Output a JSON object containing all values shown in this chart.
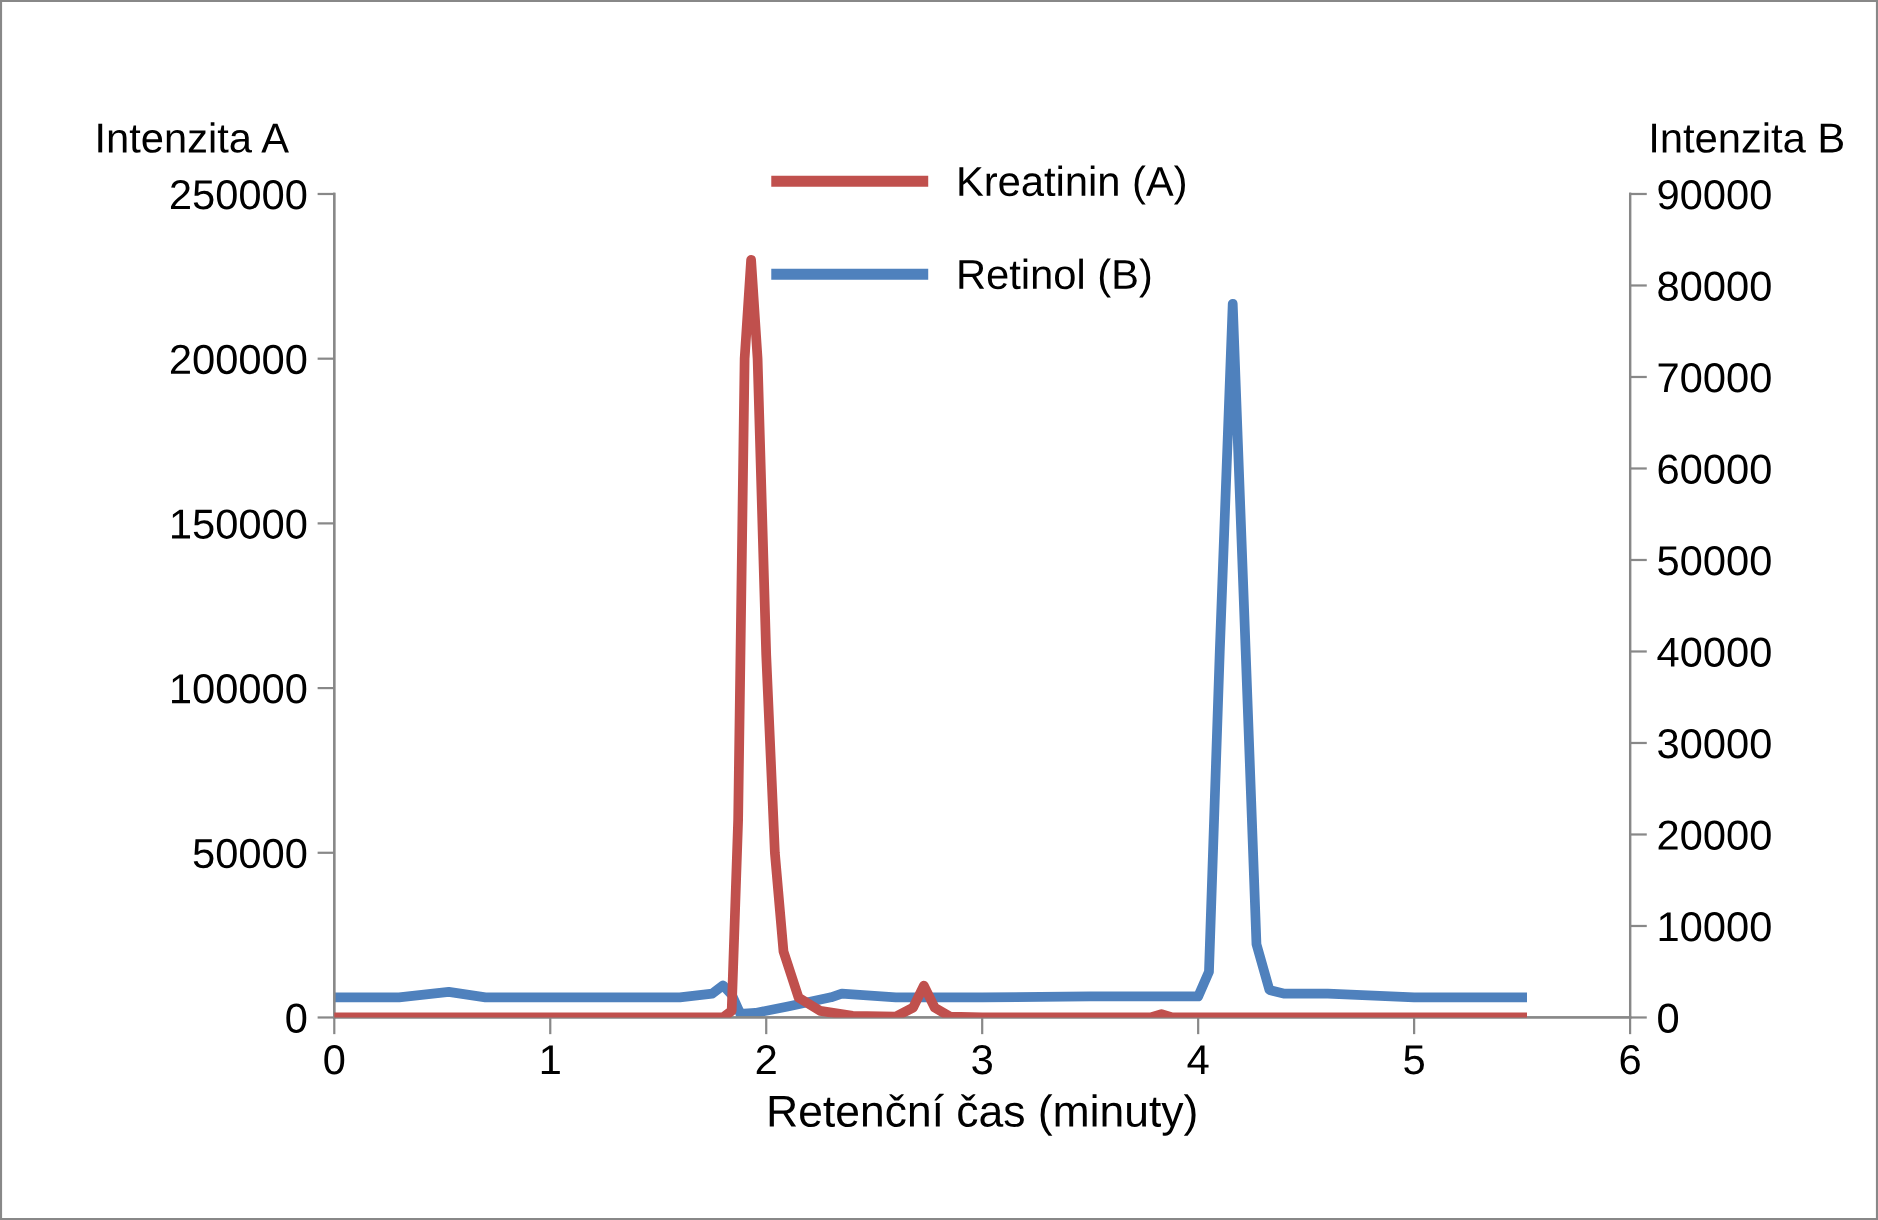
{
  "chart_data": {
    "type": "line",
    "xlabel": "Retenční čas (minuty)",
    "ylabel": "Intenzita A",
    "y2label": "Intenzita B",
    "xlim": [
      0,
      6
    ],
    "xticks": [
      0,
      1,
      2,
      3,
      4,
      5,
      6
    ],
    "ylim": [
      0,
      250000
    ],
    "yticks": [
      0,
      50000,
      100000,
      150000,
      200000,
      250000
    ],
    "y2lim": [
      0,
      90000
    ],
    "y2ticks": [
      0,
      10000,
      20000,
      30000,
      40000,
      50000,
      60000,
      70000,
      80000,
      90000
    ],
    "grid": false,
    "legend": "top",
    "marker": "none",
    "line_style": "solid",
    "series": [
      {
        "name": "Kreatinin (A)",
        "color": "#c0504d",
        "x": [
          0,
          0.5,
          1.0,
          1.5,
          1.8,
          1.84,
          1.87,
          1.9,
          1.93,
          1.96,
          2.0,
          2.04,
          2.08,
          2.15,
          2.25,
          2.4,
          2.6,
          2.68,
          2.73,
          2.78,
          2.85,
          3.0,
          3.5,
          3.78,
          3.83,
          3.88,
          4.2,
          4.8,
          5.5
        ],
        "values": [
          0,
          0,
          0,
          0,
          0,
          2000,
          60000,
          200000,
          230000,
          200000,
          110000,
          50000,
          20000,
          6000,
          2000,
          500,
          300,
          3000,
          9700,
          3000,
          300,
          0,
          0,
          0,
          1000,
          0,
          0,
          0,
          0
        ]
      },
      {
        "name": "Retinol (B)",
        "color": "#4f81bd",
        "axis": "y2",
        "x": [
          0,
          0.3,
          0.53,
          0.7,
          1.0,
          1.3,
          1.6,
          1.75,
          1.8,
          1.84,
          1.88,
          1.95,
          2.1,
          2.3,
          2.35,
          2.6,
          3.0,
          3.5,
          4.0,
          4.05,
          4.1,
          4.16,
          4.22,
          4.27,
          4.33,
          4.4,
          4.6,
          5.0,
          5.5
        ],
        "values": [
          2200,
          2200,
          2800,
          2200,
          2200,
          2200,
          2200,
          2600,
          3500,
          2500,
          400,
          500,
          1200,
          2200,
          2600,
          2200,
          2200,
          2300,
          2300,
          5000,
          40000,
          78000,
          40000,
          8000,
          3000,
          2600,
          2600,
          2200,
          2200
        ]
      }
    ]
  }
}
